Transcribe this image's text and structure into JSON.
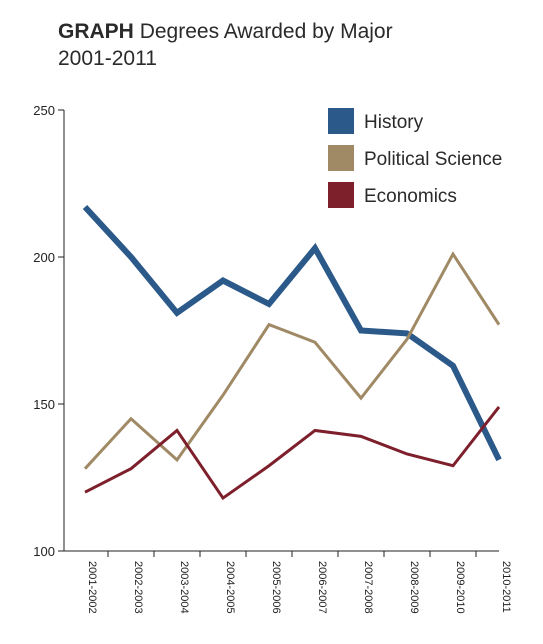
{
  "header": {
    "kicker": "GRAPH",
    "title": "Degrees Awarded by Major",
    "subtitle": "2001-2011"
  },
  "chart_data": {
    "type": "line",
    "title": "Degrees Awarded by Major",
    "subtitle": "2001-2011",
    "xlabel": "",
    "ylabel": "",
    "categories": [
      "2001-2002",
      "2002-2003",
      "2003-2004",
      "2004-2005",
      "2005-2006",
      "2006-2007",
      "2007-2008",
      "2008-2009",
      "2009-2010",
      "2010-2011"
    ],
    "ylim": [
      100,
      250
    ],
    "yticks": [
      100,
      150,
      200,
      250
    ],
    "grid": false,
    "legend_position": "top-right",
    "series": [
      {
        "name": "History",
        "color": "#2b5a8a",
        "values": [
          217,
          200,
          181,
          192,
          184,
          203,
          175,
          174,
          163,
          131
        ]
      },
      {
        "name": "Political Science",
        "color": "#a08a65",
        "values": [
          128,
          145,
          131,
          153,
          177,
          171,
          152,
          172,
          201,
          177
        ]
      },
      {
        "name": "Economics",
        "color": "#7e1f2c",
        "values": [
          120,
          128,
          141,
          118,
          129,
          141,
          139,
          133,
          129,
          149
        ]
      }
    ]
  }
}
